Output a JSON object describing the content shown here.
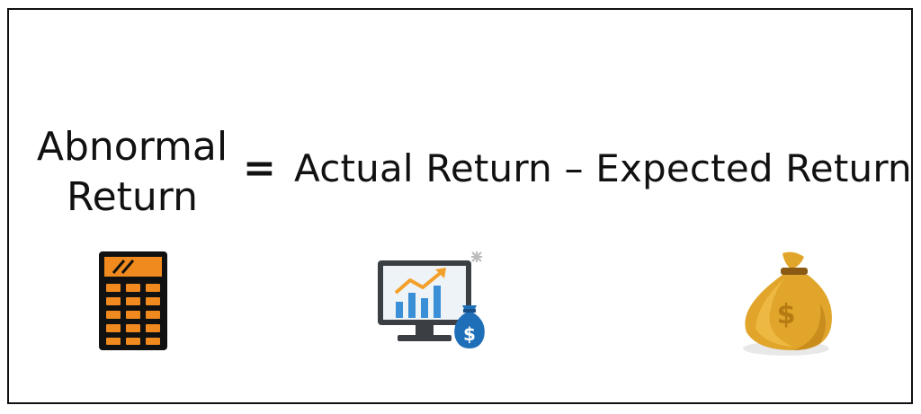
{
  "formula": {
    "lhs_line1": "Abnormal",
    "lhs_line2": "Return",
    "equals": "=",
    "rhs": "Actual Return – Expected Return"
  },
  "icons": [
    {
      "name": "calculator-icon",
      "color": "#f08a1e"
    },
    {
      "name": "monitor-chart-icon",
      "color": "#3a8fd6"
    },
    {
      "name": "money-bag-icon",
      "color": "#e0a52a"
    }
  ],
  "colors": {
    "border": "#111111",
    "text": "#111111",
    "calculator_orange": "#f08a1e",
    "monitor_blue": "#3a8fd6",
    "bag_gold": "#e0a52a"
  }
}
